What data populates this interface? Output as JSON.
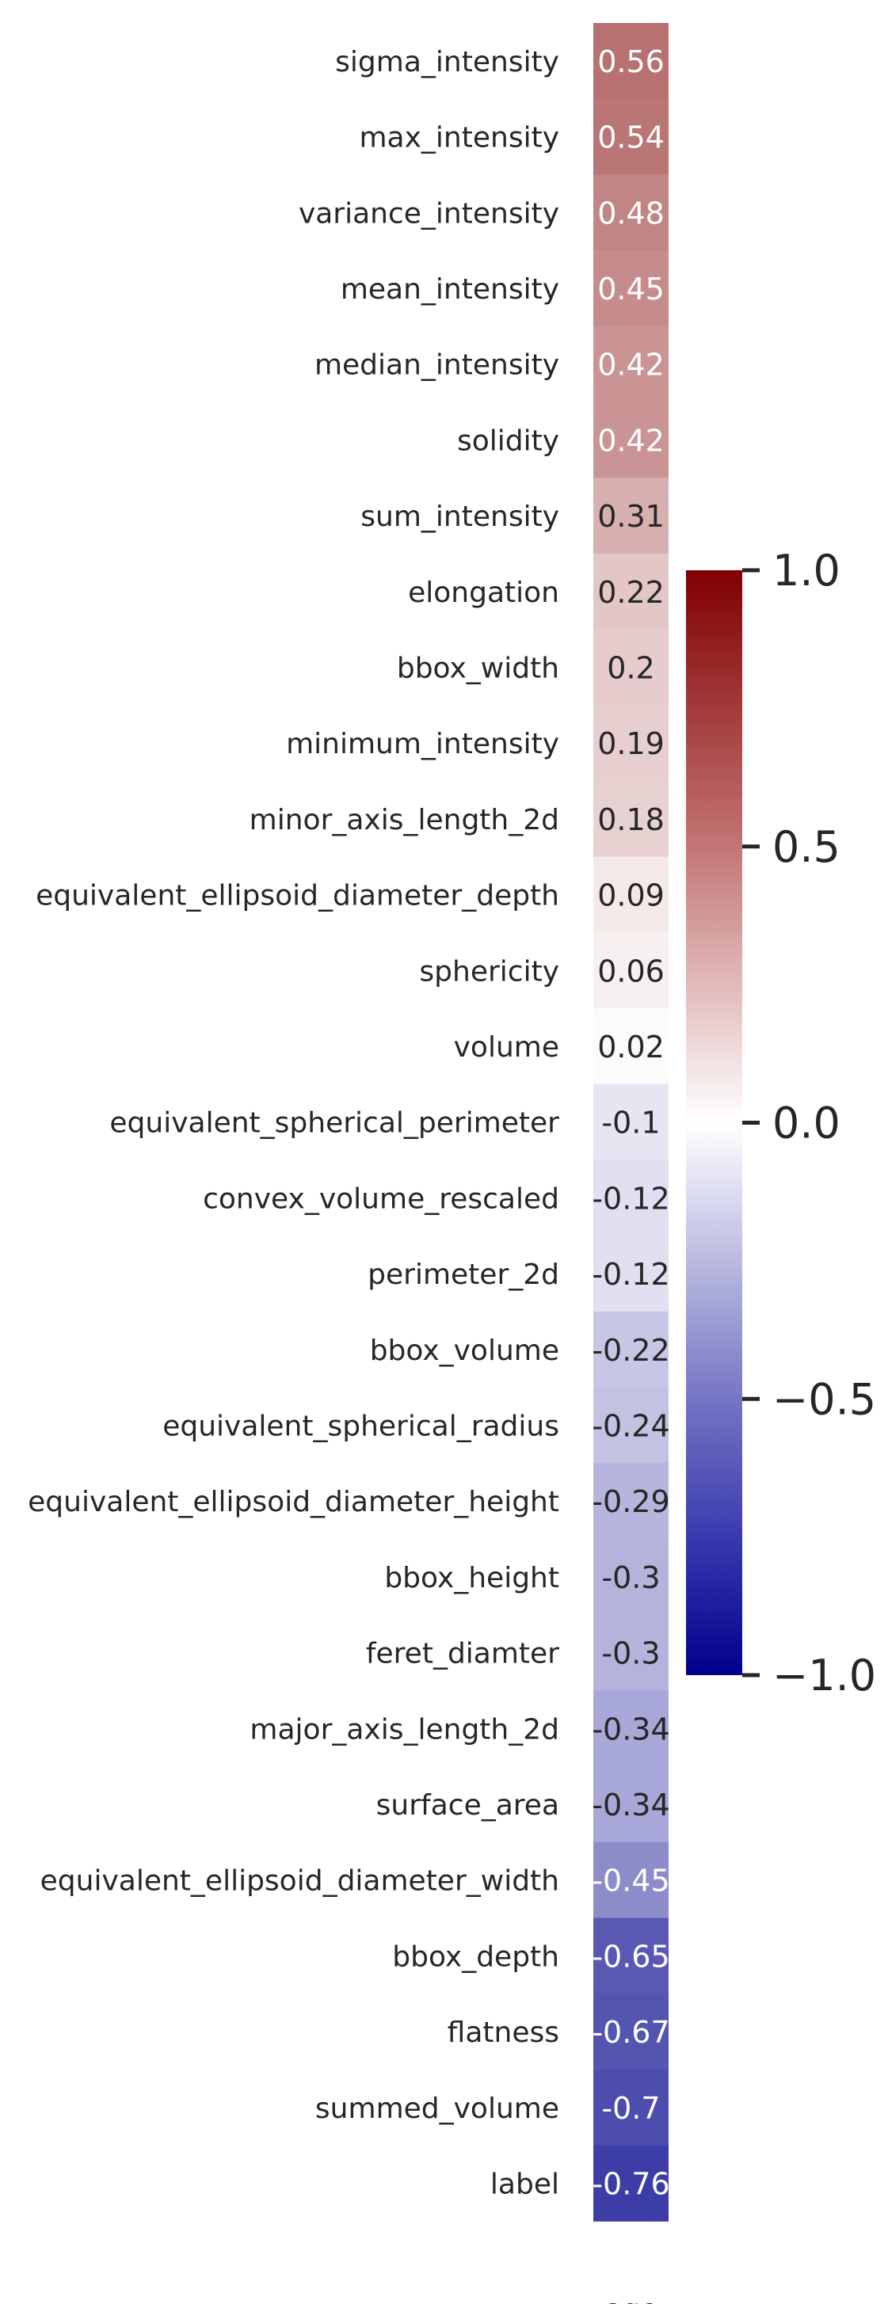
{
  "chart_data": {
    "type": "heatmap",
    "title": "",
    "columns": [
      "age"
    ],
    "rows": [
      "sigma_intensity",
      "max_intensity",
      "variance_intensity",
      "mean_intensity",
      "median_intensity",
      "solidity",
      "sum_intensity",
      "elongation",
      "bbox_width",
      "minimum_intensity",
      "minor_axis_length_2d",
      "equivalent_ellipsoid_diameter_depth",
      "sphericity",
      "volume",
      "equivalent_spherical_perimeter",
      "convex_volume_rescaled",
      "perimeter_2d",
      "bbox_volume",
      "equivalent_spherical_radius",
      "equivalent_ellipsoid_diameter_height",
      "bbox_height",
      "feret_diamter",
      "major_axis_length_2d",
      "surface_area",
      "equivalent_ellipsoid_diameter_width",
      "bbox_depth",
      "flatness",
      "summed_volume",
      "label"
    ],
    "values": [
      0.56,
      0.54,
      0.48,
      0.45,
      0.42,
      0.42,
      0.31,
      0.22,
      0.2,
      0.19,
      0.18,
      0.09,
      0.06,
      0.02,
      -0.1,
      -0.12,
      -0.12,
      -0.22,
      -0.24,
      -0.29,
      -0.3,
      -0.3,
      -0.34,
      -0.34,
      -0.45,
      -0.65,
      -0.67,
      -0.7,
      -0.76
    ],
    "value_labels": [
      "0.56",
      "0.54",
      "0.48",
      "0.45",
      "0.42",
      "0.42",
      "0.31",
      "0.22",
      "0.2",
      "0.19",
      "0.18",
      "0.09",
      "0.06",
      "0.02",
      "-0.1",
      "-0.12",
      "-0.12",
      "-0.22",
      "-0.24",
      "-0.29",
      "-0.3",
      "-0.3",
      "-0.34",
      "-0.34",
      "-0.45",
      "-0.65",
      "-0.67",
      "-0.7",
      "-0.76"
    ],
    "colormap": "seismic",
    "color_range": [
      -1.0,
      1.0
    ],
    "colorbar": {
      "ticks": [
        1.0,
        0.5,
        0.0,
        -0.5,
        -1.0
      ],
      "tick_labels": [
        "1.0",
        "0.5",
        "0.0",
        "−0.5",
        "−1.0"
      ],
      "placement": "right"
    },
    "colors": {
      "low": "#00008b",
      "mid": "#ffffff",
      "high": "#800000"
    }
  }
}
